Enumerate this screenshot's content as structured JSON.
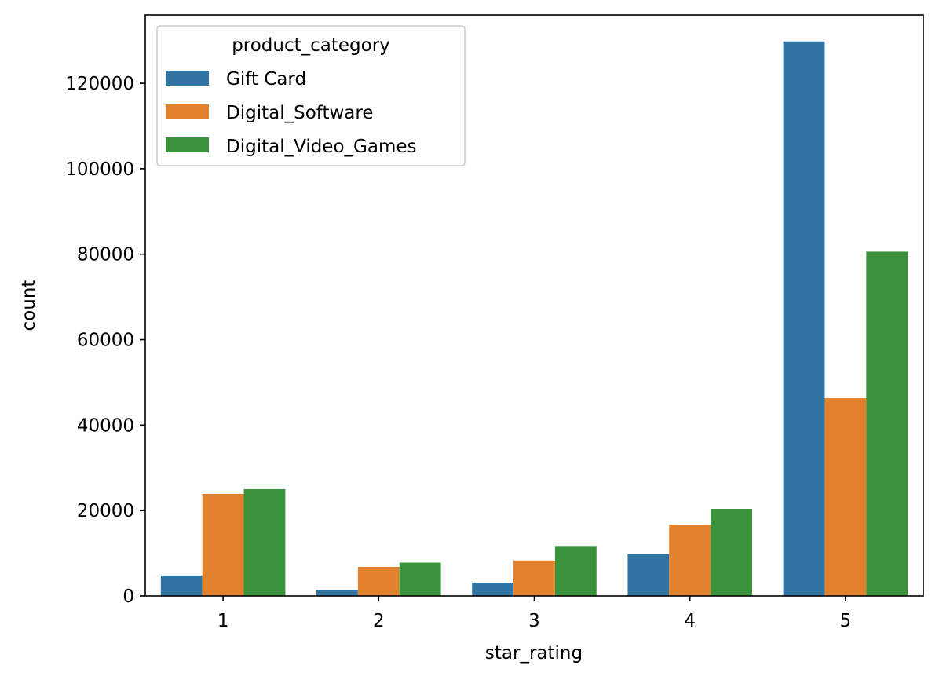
{
  "chart_data": {
    "type": "bar",
    "title": "",
    "xlabel": "star_rating",
    "ylabel": "count",
    "categories": [
      "1",
      "2",
      "3",
      "4",
      "5"
    ],
    "ylim": [
      0,
      136000
    ],
    "yticks": [
      0,
      20000,
      40000,
      60000,
      80000,
      100000,
      120000
    ],
    "ytick_labels": [
      "0",
      "20000",
      "40000",
      "60000",
      "80000",
      "100000",
      "120000"
    ],
    "grid": false,
    "legend": {
      "title": "product_category",
      "placement": "top-left"
    },
    "series": [
      {
        "name": "Gift Card",
        "color": "#3274a1",
        "values": [
          4800,
          1400,
          3100,
          9800,
          129800
        ]
      },
      {
        "name": "Digital_Software",
        "color": "#e1812c",
        "values": [
          23900,
          6800,
          8300,
          16700,
          46300
        ]
      },
      {
        "name": "Digital_Video_Games",
        "color": "#3a923a",
        "values": [
          25000,
          7800,
          11700,
          20400,
          80600
        ]
      }
    ]
  }
}
